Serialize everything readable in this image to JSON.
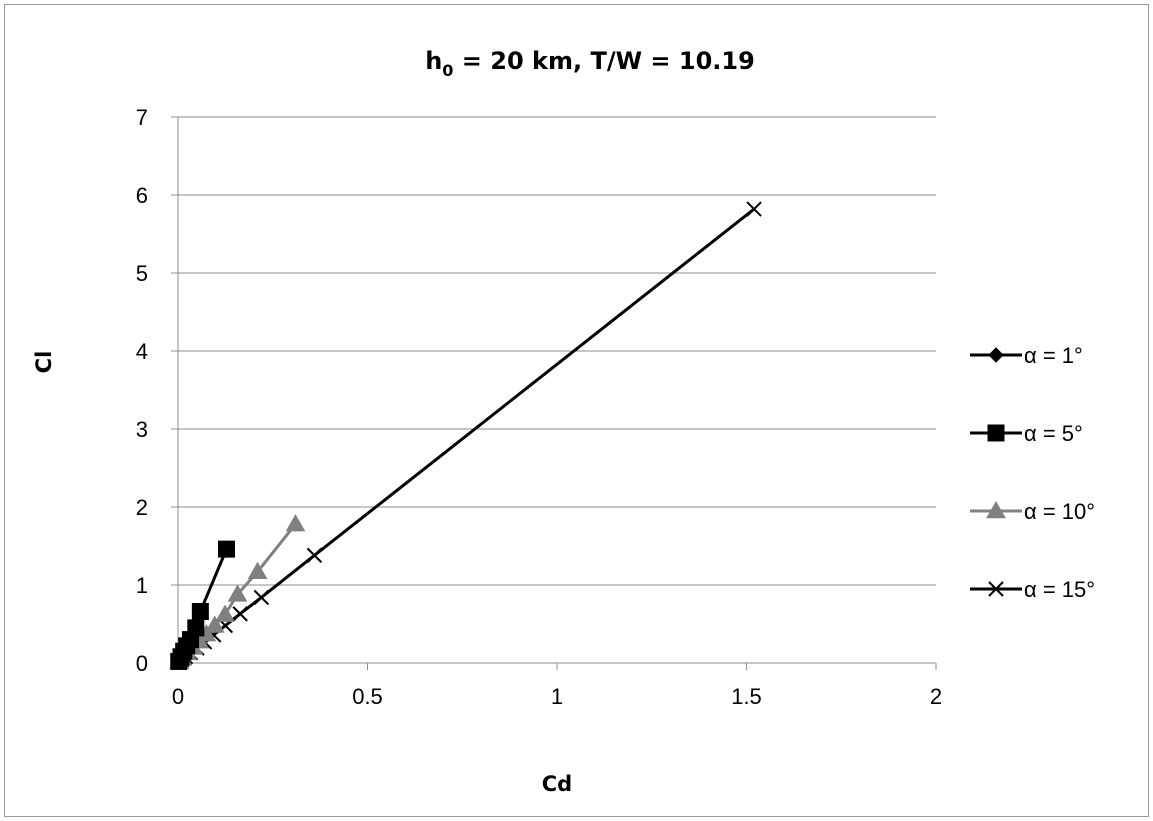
{
  "chart_data": {
    "type": "line",
    "title_main": "h",
    "title_sub": "0",
    "title_rest": " = 20 km, T/W = 10.19",
    "xlabel": "Cd",
    "ylabel": "Cl",
    "xlim": [
      0,
      2
    ],
    "ylim": [
      0,
      7
    ],
    "xticks": [
      0,
      0.5,
      1,
      1.5,
      2
    ],
    "xtick_labels": [
      "0",
      "0.5",
      "1",
      "1.5",
      "2"
    ],
    "yticks": [
      0,
      1,
      2,
      3,
      4,
      5,
      6,
      7
    ],
    "ytick_labels": [
      "0",
      "1",
      "2",
      "3",
      "4",
      "5",
      "6",
      "7"
    ],
    "grid": "horizontal",
    "legend_position": "right",
    "series": [
      {
        "name": "α = 1°",
        "marker": "diamond",
        "color": "#000000",
        "x": [
          0.001,
          0.003,
          0.006,
          0.009,
          0.012,
          0.016,
          0.02
        ],
        "y": [
          0.01,
          0.03,
          0.06,
          0.09,
          0.12,
          0.15,
          0.18
        ]
      },
      {
        "name": "α = 5°",
        "marker": "square",
        "color": "#000000",
        "x": [
          0.002,
          0.008,
          0.015,
          0.023,
          0.033,
          0.047,
          0.059,
          0.128
        ],
        "y": [
          0.02,
          0.08,
          0.15,
          0.22,
          0.3,
          0.45,
          0.66,
          1.46
        ]
      },
      {
        "name": "α = 10°",
        "marker": "triangle",
        "color": "#808080",
        "x": [
          0.003,
          0.012,
          0.025,
          0.04,
          0.056,
          0.075,
          0.097,
          0.124,
          0.157,
          0.21,
          0.31
        ],
        "y": [
          0.02,
          0.06,
          0.13,
          0.2,
          0.28,
          0.37,
          0.48,
          0.62,
          0.88,
          1.17,
          1.78
        ]
      },
      {
        "name": "α = 15°",
        "marker": "x",
        "color": "#000000",
        "x": [
          0.003,
          0.01,
          0.02,
          0.033,
          0.05,
          0.07,
          0.094,
          0.125,
          0.164,
          0.22,
          0.36,
          1.52
        ],
        "y": [
          0.01,
          0.04,
          0.08,
          0.13,
          0.19,
          0.27,
          0.36,
          0.48,
          0.63,
          0.84,
          1.38,
          5.82
        ]
      }
    ]
  }
}
